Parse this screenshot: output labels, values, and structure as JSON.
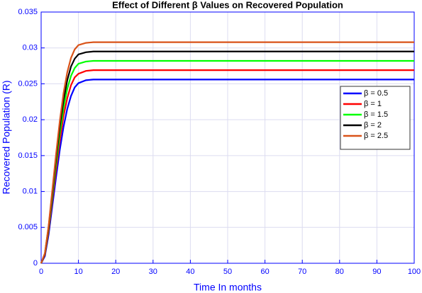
{
  "chart_data": {
    "type": "line",
    "title": "Effect of Different β Values on Recovered Population",
    "x_label": "Time In months",
    "y_label": "Recovered Population (R)",
    "x": [
      0,
      1,
      2,
      3,
      4,
      5,
      6,
      7,
      8,
      9,
      10,
      12,
      14,
      16,
      20,
      30,
      40,
      50,
      60,
      70,
      80,
      90,
      100
    ],
    "series": [
      {
        "name": "β = 0.5",
        "color": "#0000ff",
        "values": [
          0,
          0.001,
          0.004,
          0.008,
          0.012,
          0.0158,
          0.019,
          0.0215,
          0.0233,
          0.0245,
          0.0251,
          0.0255,
          0.0256,
          0.0256,
          0.0256,
          0.0256,
          0.0256,
          0.0256,
          0.0256,
          0.0256,
          0.0256,
          0.0256,
          0.0256
        ]
      },
      {
        "name": "β = 1",
        "color": "#ff0000",
        "values": [
          0,
          0.0012,
          0.0045,
          0.0088,
          0.0131,
          0.0171,
          0.0205,
          0.023,
          0.0248,
          0.0259,
          0.0264,
          0.0268,
          0.0269,
          0.0269,
          0.0269,
          0.0269,
          0.0269,
          0.0269,
          0.0269,
          0.0269,
          0.0269,
          0.0269,
          0.0269
        ]
      },
      {
        "name": "β = 1.5",
        "color": "#00ff00",
        "values": [
          0,
          0.0013,
          0.0048,
          0.0093,
          0.0139,
          0.0181,
          0.0216,
          0.0243,
          0.0261,
          0.0272,
          0.0278,
          0.0281,
          0.0282,
          0.0282,
          0.0282,
          0.0282,
          0.0282,
          0.0282,
          0.0282,
          0.0282,
          0.0282,
          0.0282,
          0.0282
        ]
      },
      {
        "name": "β = 2",
        "color": "#000000",
        "values": [
          0,
          0.0013,
          0.005,
          0.0098,
          0.0146,
          0.019,
          0.0227,
          0.0255,
          0.0274,
          0.0285,
          0.0291,
          0.0294,
          0.0295,
          0.0295,
          0.0295,
          0.0295,
          0.0295,
          0.0295,
          0.0295,
          0.0295,
          0.0295,
          0.0295,
          0.0295
        ]
      },
      {
        "name": "β = 2.5",
        "color": "#d95319",
        "values": [
          0,
          0.0014,
          0.0052,
          0.0102,
          0.0152,
          0.0198,
          0.0237,
          0.0266,
          0.0286,
          0.0298,
          0.0304,
          0.0307,
          0.0308,
          0.0308,
          0.0308,
          0.0308,
          0.0308,
          0.0308,
          0.0308,
          0.0308,
          0.0308,
          0.0308,
          0.0308
        ]
      }
    ],
    "xlim": [
      0,
      100
    ],
    "xticks": [
      0,
      10,
      20,
      30,
      40,
      50,
      60,
      70,
      80,
      90,
      100
    ],
    "ylim": [
      0,
      0.035
    ],
    "yticks": [
      0,
      0.005,
      0.01,
      0.015,
      0.02,
      0.025,
      0.03,
      0.035
    ],
    "grid": true,
    "legend_position": "right"
  }
}
